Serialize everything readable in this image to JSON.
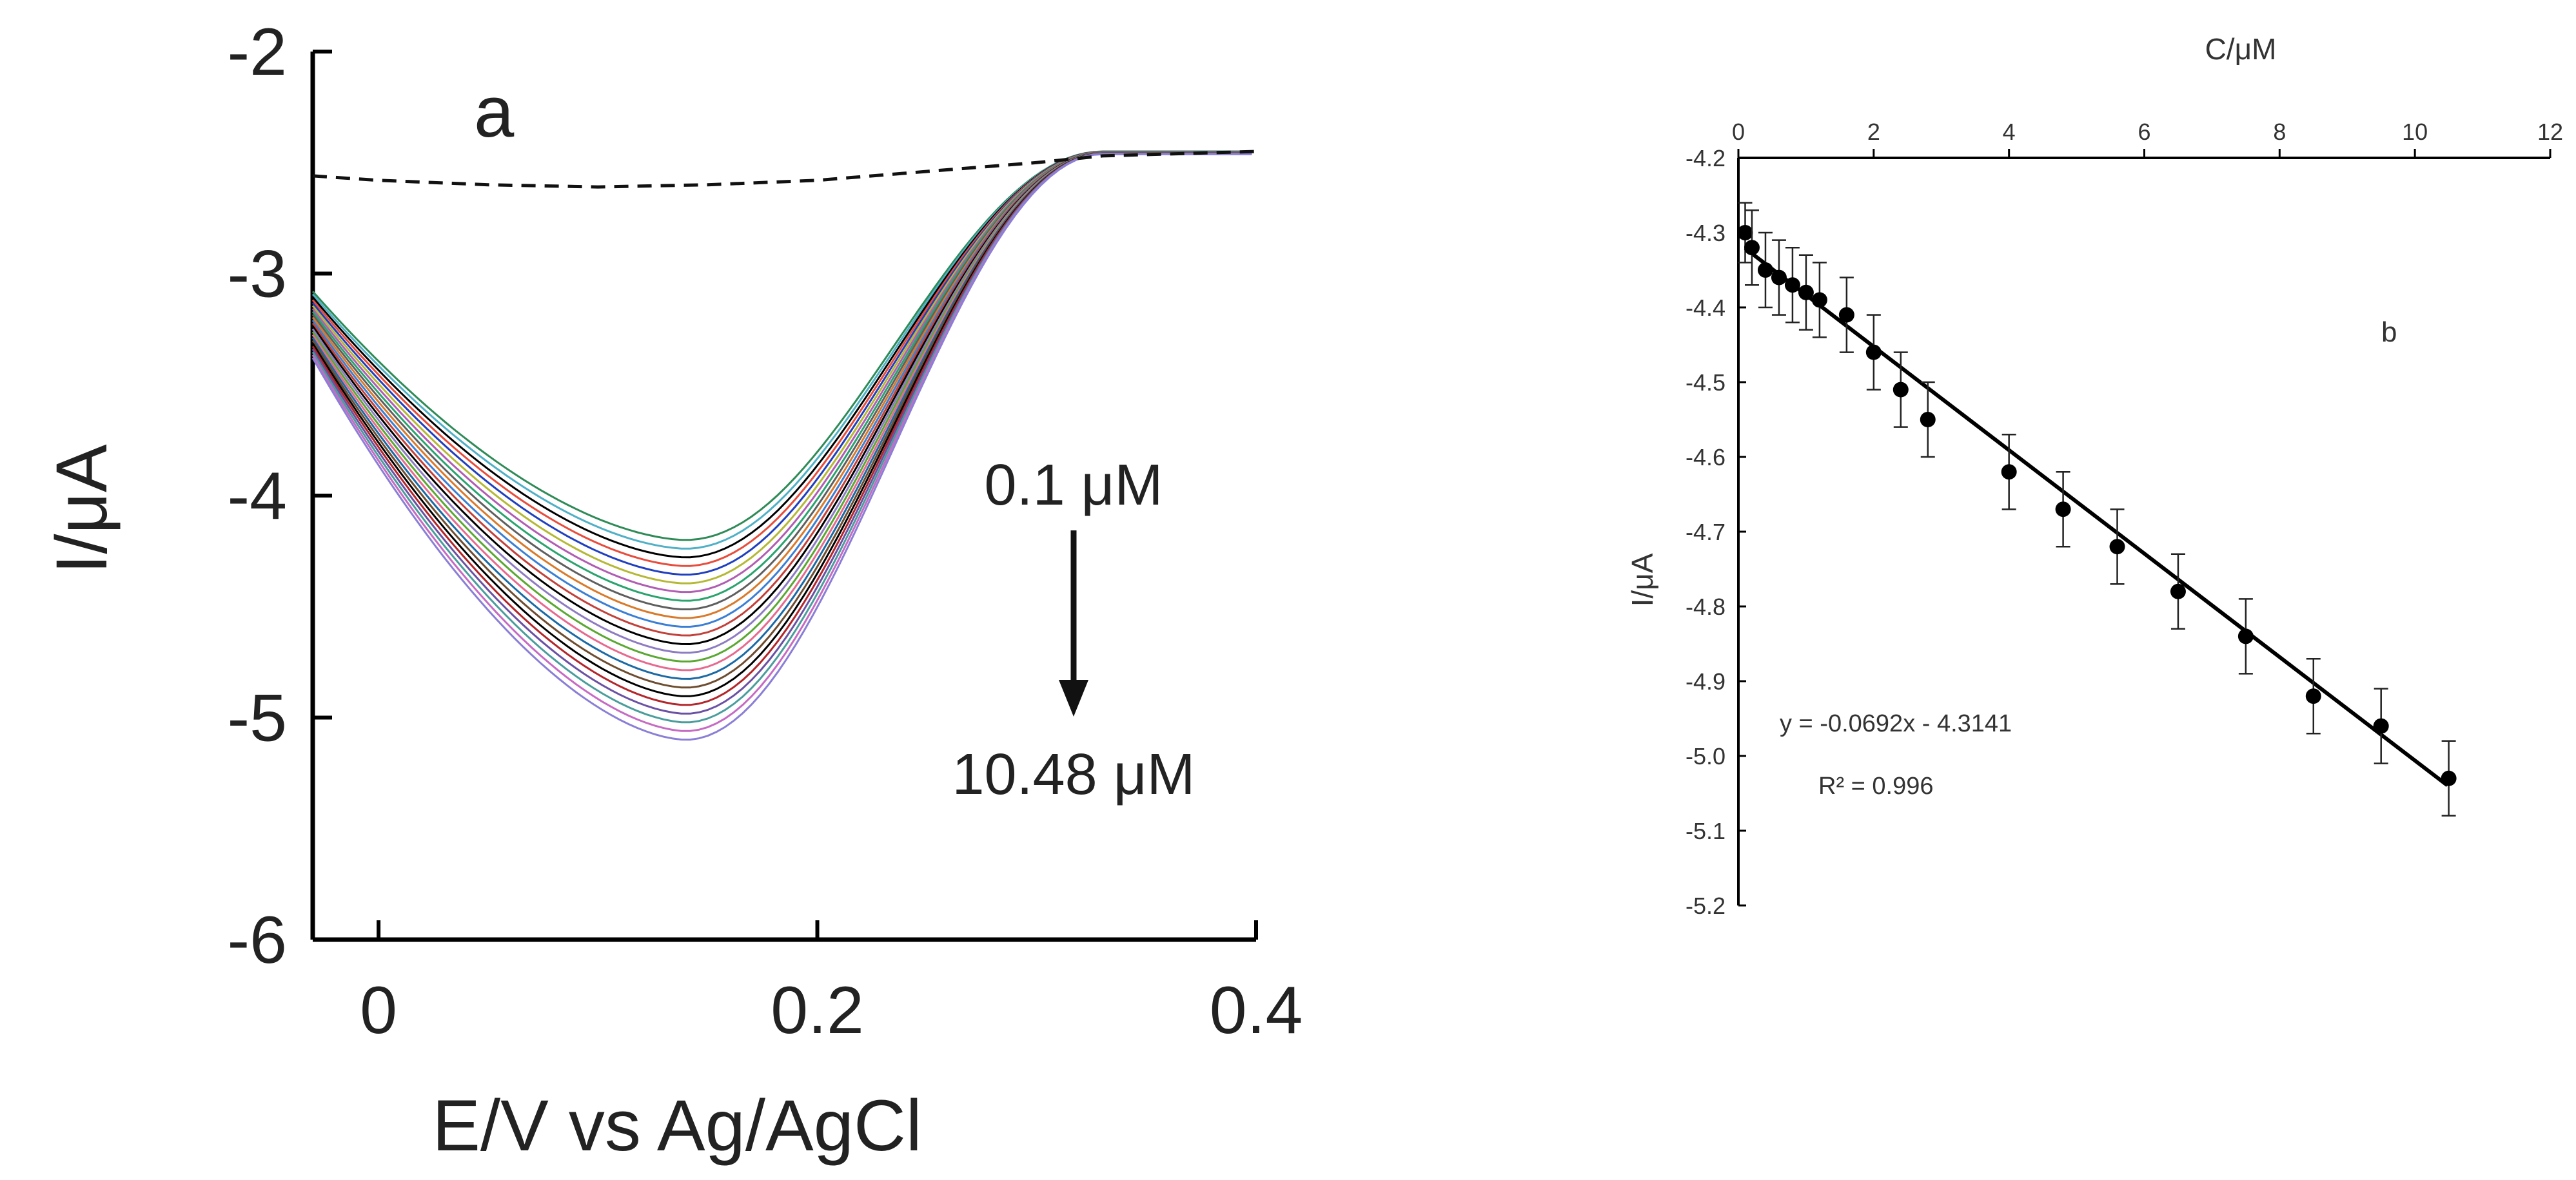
{
  "chart_data": [
    {
      "type": "line",
      "panel_label": "a",
      "xlabel": "E/V vs Ag/AgCl",
      "ylabel": "I/μA",
      "xlim": [
        -0.03,
        0.4
      ],
      "ylim": [
        -6,
        -2
      ],
      "x_ticks": [
        0,
        0.2,
        0.4
      ],
      "x_tick_labels": [
        "0",
        "0.2",
        "0.4"
      ],
      "y_ticks": [
        -2,
        -3,
        -4,
        -5,
        -6
      ],
      "y_tick_labels": [
        "-2",
        "-3",
        "-4",
        "-5",
        "-6"
      ],
      "grid": false,
      "legend": "none",
      "annotations": {
        "start_label": "0.1 μM",
        "end_label": "10.48 μM"
      },
      "blank_curve": {
        "style": "dashed",
        "color": "#111111",
        "points": [
          [
            -0.03,
            -2.56
          ],
          [
            0.0,
            -2.58
          ],
          [
            0.05,
            -2.6
          ],
          [
            0.1,
            -2.61
          ],
          [
            0.15,
            -2.6
          ],
          [
            0.2,
            -2.58
          ],
          [
            0.25,
            -2.54
          ],
          [
            0.3,
            -2.5
          ],
          [
            0.33,
            -2.47
          ],
          [
            0.4,
            -2.45
          ]
        ]
      },
      "series_summary": {
        "count": 24,
        "peak_potential": 0.14,
        "start_current_range": [
          -3.08,
          -3.38
        ],
        "peak_current_range": [
          -4.2,
          -5.1
        ],
        "end_potential": 0.4,
        "end_current": -2.45
      },
      "series_colors": [
        "#2e8b57",
        "#4fb0c6",
        "#000000",
        "#e74c3c",
        "#1f3fbf",
        "#b5b834",
        "#b05db3",
        "#2aa36e",
        "#5f5f5f",
        "#d97a2b",
        "#3a7fd5",
        "#c2413a",
        "#000000",
        "#8e7cc3",
        "#5aa832",
        "#e66a8f",
        "#1b6aa5",
        "#6d4c2f",
        "#000000",
        "#b3262b",
        "#6a51a3",
        "#4a9d9c",
        "#c66bc4",
        "#8a7fd6"
      ]
    },
    {
      "type": "scatter",
      "panel_label": "b",
      "xlabel": "C/μM",
      "ylabel": "I/μA",
      "xlim": [
        0,
        12
      ],
      "ylim": [
        -5.2,
        -4.2
      ],
      "x_ticks": [
        0,
        2,
        4,
        6,
        8,
        10,
        12
      ],
      "x_tick_labels": [
        "0",
        "2",
        "4",
        "6",
        "8",
        "10",
        "12"
      ],
      "y_ticks": [
        -4.2,
        -4.3,
        -4.4,
        -4.5,
        -4.6,
        -4.7,
        -4.8,
        -4.9,
        -5.0,
        -5.1,
        -5.2
      ],
      "y_tick_labels": [
        "-4.2",
        "-4.3",
        "-4.4",
        "-4.5",
        "-4.6",
        "-4.7",
        "-4.8",
        "-4.9",
        "-5.0",
        "-5.1",
        "-5.2"
      ],
      "grid": false,
      "legend": "none",
      "x_axis_position": "top",
      "points": [
        {
          "x": 0.1,
          "y": -4.3,
          "err": 0.04
        },
        {
          "x": 0.2,
          "y": -4.32,
          "err": 0.05
        },
        {
          "x": 0.4,
          "y": -4.35,
          "err": 0.05
        },
        {
          "x": 0.6,
          "y": -4.36,
          "err": 0.05
        },
        {
          "x": 0.8,
          "y": -4.37,
          "err": 0.05
        },
        {
          "x": 1.0,
          "y": -4.38,
          "err": 0.05
        },
        {
          "x": 1.2,
          "y": -4.39,
          "err": 0.05
        },
        {
          "x": 1.6,
          "y": -4.41,
          "err": 0.05
        },
        {
          "x": 2.0,
          "y": -4.46,
          "err": 0.05
        },
        {
          "x": 2.4,
          "y": -4.51,
          "err": 0.05
        },
        {
          "x": 2.8,
          "y": -4.55,
          "err": 0.05
        },
        {
          "x": 4.0,
          "y": -4.62,
          "err": 0.05
        },
        {
          "x": 4.8,
          "y": -4.67,
          "err": 0.05
        },
        {
          "x": 5.6,
          "y": -4.72,
          "err": 0.05
        },
        {
          "x": 6.5,
          "y": -4.78,
          "err": 0.05
        },
        {
          "x": 7.5,
          "y": -4.84,
          "err": 0.05
        },
        {
          "x": 8.5,
          "y": -4.92,
          "err": 0.05
        },
        {
          "x": 9.5,
          "y": -4.96,
          "err": 0.05
        },
        {
          "x": 10.5,
          "y": -5.03,
          "err": 0.05
        }
      ],
      "fit": {
        "slope": -0.0692,
        "intercept": -4.3141,
        "x_range": [
          0.1,
          10.48
        ],
        "equation_text": "y = -0.0692x - 4.3141",
        "r2_text": "R² = 0.996"
      }
    }
  ]
}
